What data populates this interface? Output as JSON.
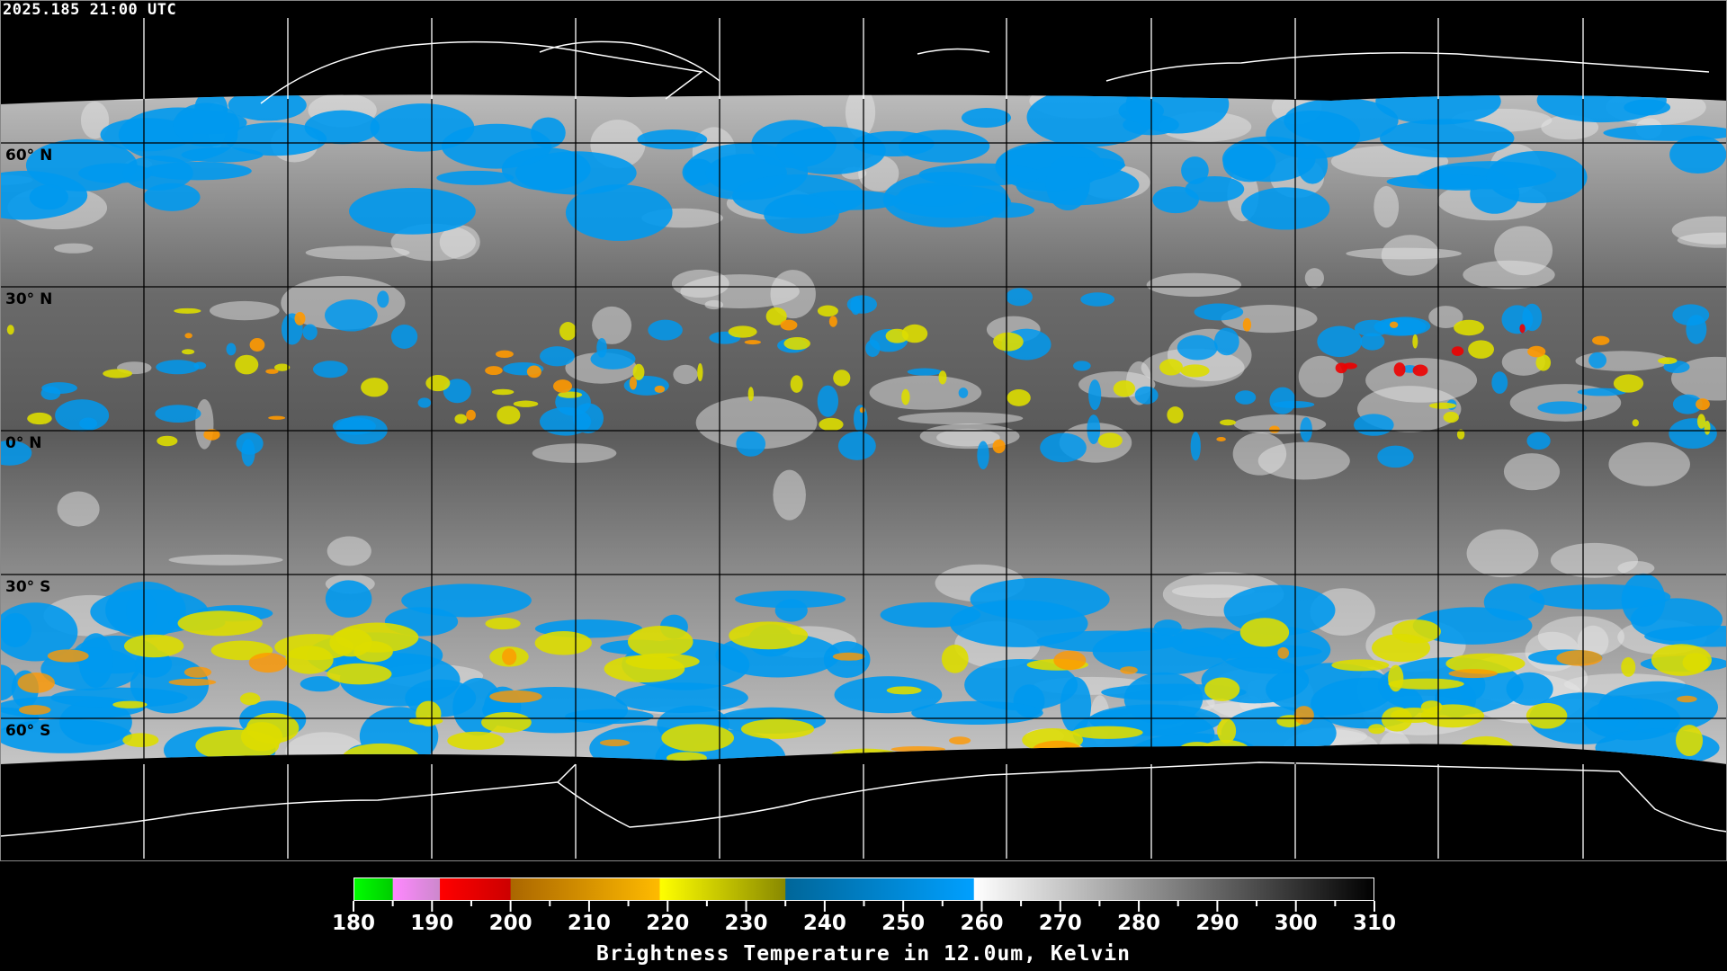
{
  "header": {
    "timestamp": "2025.185 21:00 UTC"
  },
  "map": {
    "lat_labels": [
      "60° N",
      "30° N",
      "0° N",
      "30° S",
      "60° S"
    ],
    "background_color": "#000000",
    "grid_color_over_data": "#000000",
    "grid_color_over_background": "#ffffff",
    "coastline_color": "#ffffff"
  },
  "colorbar": {
    "title": "Brightness Temperature in 12.0um, Kelvin",
    "range": [
      180,
      310
    ],
    "tick_labels": [
      "180",
      "190",
      "200",
      "210",
      "220",
      "230",
      "240",
      "250",
      "260",
      "270",
      "280",
      "290",
      "300",
      "310"
    ],
    "segments": [
      {
        "from": 180,
        "to": 185,
        "start_color": "#00ff00",
        "end_color": "#00cc00"
      },
      {
        "from": 185,
        "to": 191,
        "start_color": "#ff88ff",
        "end_color": "#cc88cc"
      },
      {
        "from": 191,
        "to": 200,
        "start_color": "#ff0000",
        "end_color": "#cc0000"
      },
      {
        "from": 200,
        "to": 219,
        "start_color": "#aa6600",
        "end_color": "#ffbb00"
      },
      {
        "from": 219,
        "to": 235,
        "start_color": "#ffff00",
        "end_color": "#888800"
      },
      {
        "from": 235,
        "to": 259,
        "start_color": "#006699",
        "end_color": "#00a0ff"
      },
      {
        "from": 259,
        "to": 310,
        "start_color": "#ffffff",
        "end_color": "#000000"
      }
    ]
  }
}
